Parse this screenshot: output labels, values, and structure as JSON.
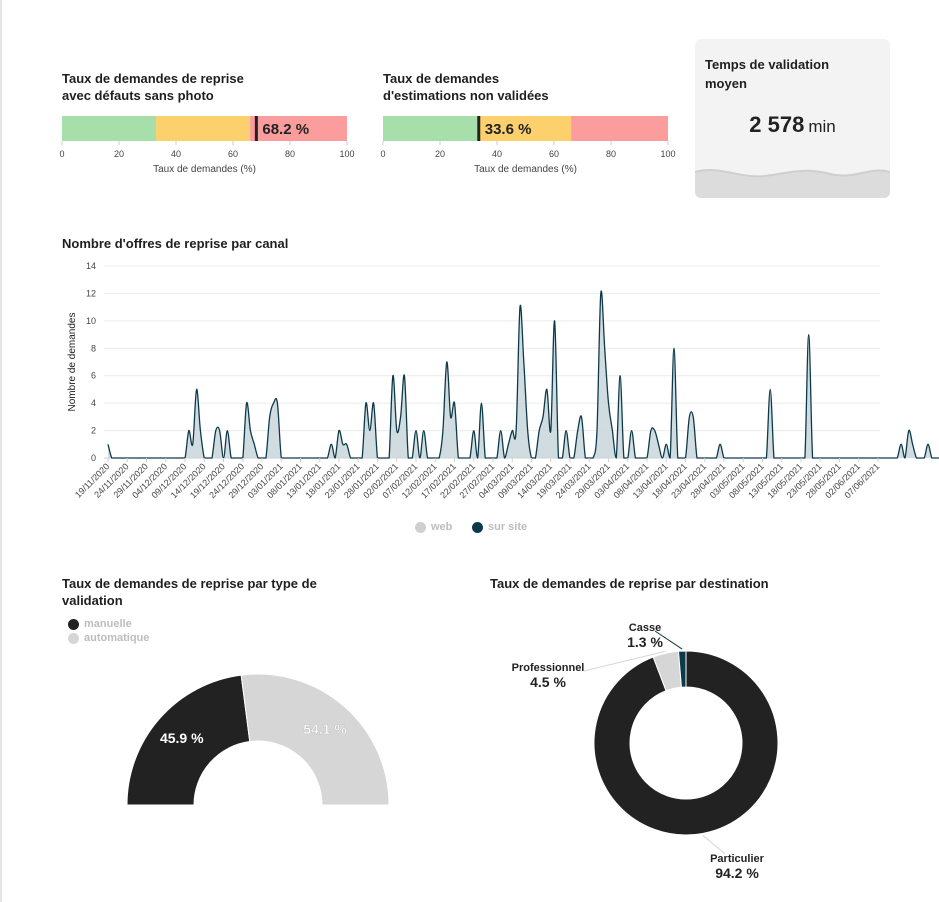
{
  "gauge1": {
    "title_line1": "Taux de demandes de reprise",
    "title_line2": "avec défauts sans photo",
    "value": 68.2,
    "value_label": "68.2 %",
    "xlabel": "Taux de demandes (%)",
    "ticks": [
      "0",
      "20",
      "40",
      "60",
      "80",
      "100"
    ],
    "bands": [
      {
        "from": 0,
        "to": 33,
        "color": "#a6dfaa"
      },
      {
        "from": 33,
        "to": 66,
        "color": "#fdd06e"
      },
      {
        "from": 66,
        "to": 100,
        "color": "#fb9d9c"
      }
    ]
  },
  "gauge2": {
    "title_line1": "Taux de demandes",
    "title_line2": "d'estimations non validées",
    "value": 33.6,
    "value_label": "33.6 %",
    "xlabel": "Taux de demandes (%)",
    "ticks": [
      "0",
      "20",
      "40",
      "60",
      "80",
      "100"
    ],
    "bands": [
      {
        "from": 0,
        "to": 33,
        "color": "#a6dfaa"
      },
      {
        "from": 33,
        "to": 66,
        "color": "#fdd06e"
      },
      {
        "from": 66,
        "to": 100,
        "color": "#fb9d9c"
      }
    ]
  },
  "kpi": {
    "title": "Temps de validation moyen",
    "value": "2 578",
    "unit": "min"
  },
  "colors": {
    "dark": "#222222",
    "light": "#d6d6d6",
    "navy": "#0d3a4a",
    "area": "#c9d6da"
  },
  "chart_data": [
    {
      "type": "area",
      "title": "Nombre d'offres de reprise par canal",
      "ylabel": "Nombre de demandes",
      "ylim": [
        0,
        14
      ],
      "yticks": [
        0,
        2,
        4,
        6,
        8,
        10,
        12,
        14
      ],
      "x_labels": [
        "19/11/2020",
        "24/11/2020",
        "29/11/2020",
        "04/12/2020",
        "09/12/2020",
        "14/12/2020",
        "19/12/2020",
        "24/12/2020",
        "29/12/2020",
        "03/01/2021",
        "08/01/2021",
        "13/01/2021",
        "18/01/2021",
        "23/01/2021",
        "28/01/2021",
        "02/02/2021",
        "07/02/2021",
        "12/02/2021",
        "17/02/2021",
        "22/02/2021",
        "27/02/2021",
        "04/03/2021",
        "09/03/2021",
        "14/03/2021",
        "19/03/2021",
        "24/03/2021",
        "29/03/2021",
        "03/04/2021",
        "08/04/2021",
        "13/04/2021",
        "18/04/2021",
        "23/04/2021",
        "28/04/2021",
        "03/05/2021",
        "08/05/2021",
        "13/05/2021",
        "18/05/2021",
        "23/05/2021",
        "28/05/2021",
        "02/06/2021",
        "07/06/2021"
      ],
      "start_date": "2020-11-19",
      "series": [
        {
          "name": "web",
          "values": []
        },
        {
          "name": "sur site",
          "values": [
            1,
            0,
            0,
            0,
            0,
            0,
            0,
            0,
            0,
            0,
            0,
            0,
            0,
            0,
            0,
            0,
            0,
            0,
            0,
            0,
            0,
            2,
            1,
            5,
            2,
            0,
            0,
            0,
            2,
            2,
            0,
            2,
            0,
            0,
            0,
            0,
            4,
            2,
            1,
            0,
            0,
            0,
            3,
            4,
            4,
            0,
            0,
            0,
            0,
            0,
            0,
            0,
            0,
            0,
            0,
            0,
            0,
            0,
            1,
            0,
            2,
            1,
            1,
            0,
            0,
            0,
            0,
            4,
            2,
            4,
            0,
            0,
            0,
            0,
            6,
            2,
            3,
            6,
            0,
            0,
            2,
            0,
            2,
            0,
            0,
            0,
            0,
            2,
            7,
            3,
            4,
            0,
            0,
            0,
            0,
            2,
            0,
            4,
            0,
            0,
            0,
            0,
            2,
            0,
            1,
            2,
            2,
            11,
            7,
            2,
            0,
            0,
            2,
            3,
            5,
            2,
            10,
            0,
            0,
            2,
            0,
            0,
            2,
            3,
            0,
            0,
            0,
            2,
            12,
            8,
            4,
            2,
            0,
            6,
            0,
            0,
            2,
            0,
            0,
            0,
            0,
            2,
            2,
            1,
            0,
            1,
            0,
            8,
            0,
            0,
            0,
            3,
            3,
            0,
            0,
            0,
            0,
            0,
            0,
            1,
            0,
            0,
            0,
            0,
            0,
            0,
            0,
            0,
            0,
            0,
            0,
            0,
            5,
            0,
            0,
            0,
            0,
            0,
            0,
            0,
            0,
            0,
            9,
            0,
            0,
            0,
            0,
            0,
            0,
            0,
            0,
            0,
            0,
            0,
            0,
            0,
            0,
            0,
            0,
            0,
            0,
            0,
            0,
            0,
            0,
            0,
            1,
            0,
            2,
            1,
            0,
            0,
            0,
            1,
            0,
            0,
            0,
            0,
            1,
            1,
            1,
            1,
            0,
            0,
            0,
            0,
            0,
            0,
            0,
            0,
            0,
            0,
            0,
            0,
            0,
            0,
            1,
            0,
            0,
            0,
            0,
            0,
            0,
            0,
            0,
            0,
            0
          ]
        }
      ],
      "legend": "bottom"
    },
    {
      "type": "pie",
      "title": "Taux de demandes de reprise par type de validation",
      "variant": "semi-donut",
      "labels": [
        "manuelle",
        "automatique"
      ],
      "values": [
        45.9,
        54.1
      ],
      "value_labels": [
        "45.9 %",
        "54.1 %"
      ],
      "colors": [
        "#222222",
        "#d6d6d6"
      ],
      "legend": "top-left"
    },
    {
      "type": "pie",
      "title": "Taux de demandes de reprise par destination",
      "variant": "donut",
      "labels": [
        "Particulier",
        "Professionnel",
        "Casse"
      ],
      "values": [
        94.2,
        4.5,
        1.3
      ],
      "value_labels": [
        "94.2 %",
        "4.5 %",
        "1.3 %"
      ],
      "colors": [
        "#222222",
        "#d6d6d6",
        "#0d3a4a"
      ]
    }
  ]
}
